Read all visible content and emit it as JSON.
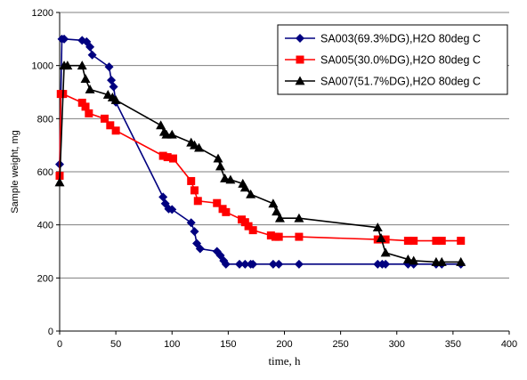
{
  "chart_data": {
    "type": "line",
    "title": "",
    "xlabel": "time, h",
    "ylabel": "Sample weight, mg",
    "xlim": [
      0,
      400
    ],
    "ylim": [
      0,
      1200
    ],
    "xticks": [
      0,
      50,
      100,
      150,
      200,
      250,
      300,
      350,
      400
    ],
    "yticks": [
      0,
      200,
      400,
      600,
      800,
      1000,
      1200
    ],
    "grid": "horizontal",
    "legend": "top-right",
    "series": [
      {
        "name": "SA003(69.3%DG),H2O 80deg C",
        "color": "#000080",
        "marker": "diamond",
        "x": [
          0,
          2,
          4,
          20,
          24,
          27,
          29,
          44,
          46,
          48,
          50,
          92,
          94,
          97,
          100,
          117,
          120,
          122,
          125,
          140,
          143,
          146,
          148,
          160,
          165,
          170,
          172,
          190,
          195,
          213,
          283,
          287,
          290,
          310,
          315,
          335,
          340,
          357
        ],
        "y": [
          628,
          1100,
          1100,
          1095,
          1090,
          1070,
          1040,
          995,
          945,
          920,
          862,
          505,
          480,
          460,
          458,
          408,
          375,
          330,
          310,
          300,
          285,
          265,
          252,
          252,
          252,
          252,
          252,
          252,
          252,
          252,
          252,
          252,
          252,
          252,
          252,
          252,
          252,
          252
        ]
      },
      {
        "name": "SA005(30.0%DG),H2O 80deg C",
        "color": "#ff0000",
        "marker": "square",
        "x": [
          0,
          1,
          3,
          20,
          23,
          26,
          40,
          45,
          50,
          92,
          96,
          101,
          117,
          120,
          123,
          140,
          145,
          148,
          162,
          165,
          168,
          172,
          188,
          192,
          195,
          213,
          283,
          290,
          310,
          315,
          335,
          340,
          357
        ],
        "y": [
          585,
          893,
          893,
          860,
          845,
          820,
          800,
          775,
          755,
          660,
          655,
          650,
          565,
          530,
          490,
          482,
          460,
          448,
          420,
          410,
          395,
          380,
          360,
          355,
          355,
          355,
          345,
          345,
          340,
          340,
          340,
          340,
          340
        ]
      },
      {
        "name": "SA007(51.7%DG),H2O 80deg C",
        "color": "#000000",
        "marker": "triangle",
        "x": [
          0,
          4,
          7,
          20,
          23,
          27,
          43,
          47,
          50,
          90,
          93,
          95,
          100,
          117,
          120,
          124,
          141,
          143,
          147,
          152,
          163,
          165,
          170,
          190,
          193,
          196,
          213,
          283,
          286,
          290,
          310,
          315,
          335,
          340,
          357
        ],
        "y": [
          560,
          1000,
          1000,
          1000,
          950,
          910,
          890,
          880,
          870,
          775,
          750,
          740,
          740,
          710,
          700,
          690,
          650,
          620,
          575,
          570,
          555,
          540,
          515,
          480,
          450,
          425,
          425,
          390,
          350,
          295,
          270,
          265,
          260,
          260,
          260
        ]
      }
    ]
  }
}
